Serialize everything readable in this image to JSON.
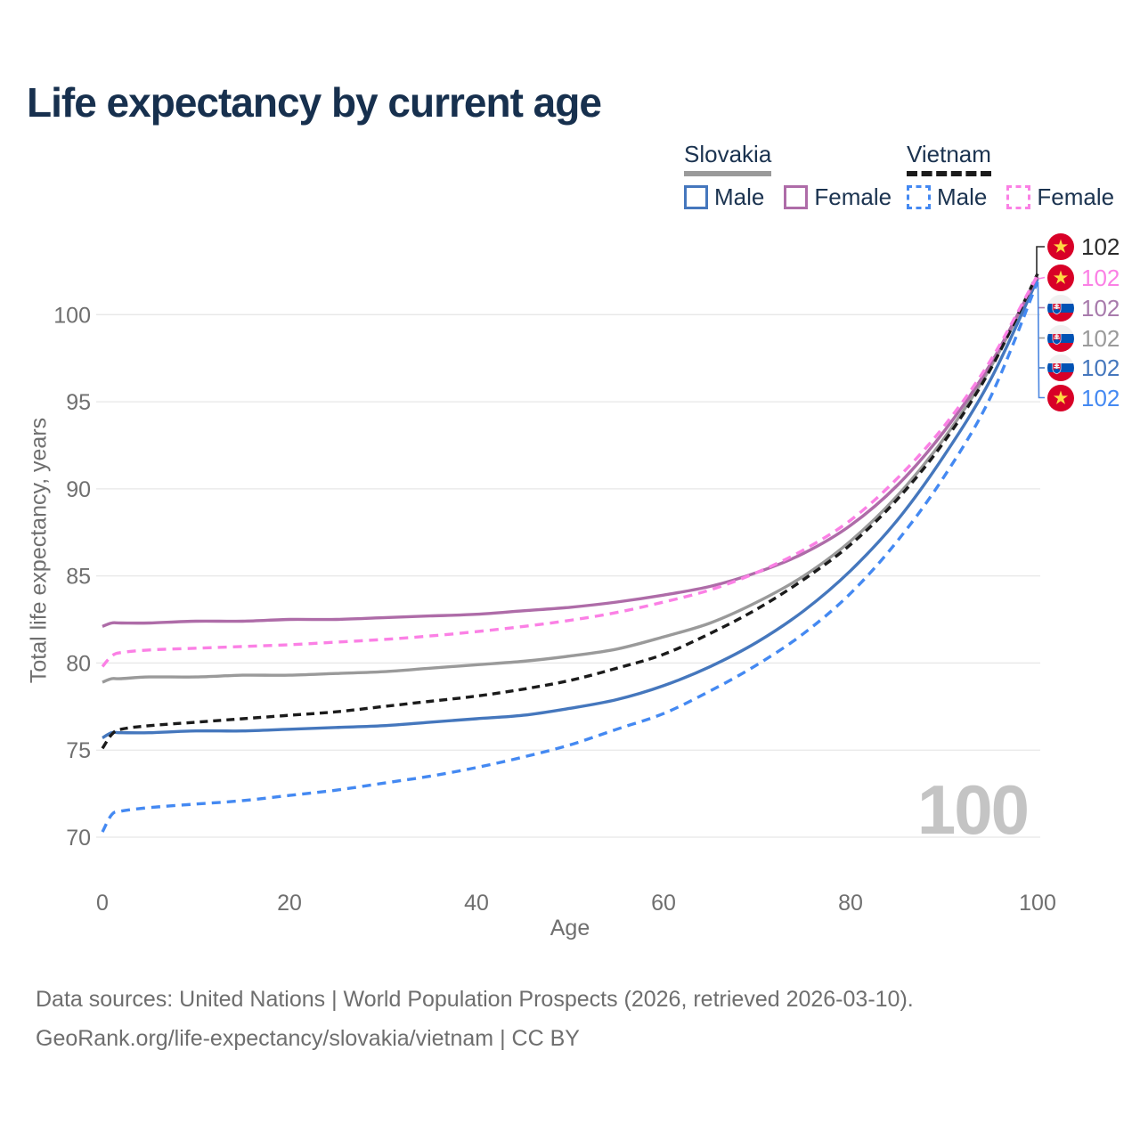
{
  "title": "Life expectancy by current age",
  "legend": {
    "groups": [
      {
        "label": "Slovakia",
        "line_style": "solid",
        "underline_color": "#9a9a9a",
        "items": [
          {
            "label": "Male",
            "color": "#4577bd",
            "dash": false
          },
          {
            "label": "Female",
            "color": "#ae6ca8",
            "dash": false
          }
        ]
      },
      {
        "label": "Vietnam",
        "line_style": "dashed",
        "underline_color": "#1b1b1b",
        "items": [
          {
            "label": "Male",
            "color": "#4489f2",
            "dash": true
          },
          {
            "label": "Female",
            "color": "#fb80e5",
            "dash": true
          }
        ]
      }
    ]
  },
  "chart_data": {
    "type": "line",
    "title": "Life expectancy by current age",
    "xlabel": "Age",
    "ylabel": "Total life expectancy, years",
    "xlim": [
      0,
      100
    ],
    "ylim": [
      70,
      102.5
    ],
    "xticks": [
      0,
      20,
      40,
      60,
      80,
      100
    ],
    "yticks": [
      70,
      75,
      80,
      85,
      90,
      95,
      100
    ],
    "grid": "horizontal-only",
    "legend_position": "top-right",
    "anchor_ages": [
      0,
      1,
      2,
      5,
      10,
      15,
      20,
      25,
      30,
      35,
      40,
      45,
      50,
      55,
      60,
      65,
      70,
      75,
      80,
      85,
      90,
      95,
      100
    ],
    "series": [
      {
        "id": "slovakia-total",
        "name": "Slovakia",
        "country": "Slovakia",
        "sex": "both",
        "color": "#9a9a9a",
        "dash": null,
        "values": [
          78.9,
          79.1,
          79.1,
          79.2,
          79.2,
          79.3,
          79.3,
          79.4,
          79.5,
          79.7,
          79.9,
          80.1,
          80.4,
          80.8,
          81.5,
          82.3,
          83.5,
          85.0,
          87.0,
          89.6,
          92.9,
          97.0,
          102.15
        ]
      },
      {
        "id": "slovakia-male",
        "name": "Slovakia Male",
        "country": "Slovakia",
        "sex": "male",
        "color": "#4577bd",
        "dash": null,
        "values": [
          75.7,
          76.0,
          76.0,
          76.0,
          76.1,
          76.1,
          76.2,
          76.3,
          76.4,
          76.6,
          76.8,
          77.0,
          77.4,
          77.9,
          78.7,
          79.8,
          81.2,
          83.0,
          85.3,
          88.2,
          91.9,
          96.3,
          102.05
        ]
      },
      {
        "id": "slovakia-female",
        "name": "Slovakia Female",
        "country": "Slovakia",
        "sex": "female",
        "color": "#ae6ca8",
        "dash": null,
        "values": [
          82.1,
          82.3,
          82.3,
          82.3,
          82.4,
          82.4,
          82.5,
          82.5,
          82.6,
          82.7,
          82.8,
          83.0,
          83.2,
          83.5,
          83.9,
          84.4,
          85.2,
          86.3,
          87.9,
          90.2,
          93.3,
          97.2,
          102.2
        ]
      },
      {
        "id": "vietnam-total",
        "name": "Vietnam",
        "country": "Vietnam",
        "sex": "both",
        "color": "#1b1b1b",
        "dash": [
          9,
          6
        ],
        "values": [
          75.1,
          75.9,
          76.2,
          76.4,
          76.6,
          76.8,
          77.0,
          77.2,
          77.5,
          77.8,
          78.1,
          78.5,
          79.0,
          79.7,
          80.5,
          81.7,
          83.1,
          84.8,
          86.8,
          89.4,
          92.7,
          96.9,
          102.35
        ]
      },
      {
        "id": "vietnam-male",
        "name": "Vietnam Male",
        "country": "Vietnam",
        "sex": "male",
        "color": "#4489f2",
        "dash": [
          10,
          7
        ],
        "values": [
          70.3,
          71.3,
          71.5,
          71.7,
          71.9,
          72.1,
          72.4,
          72.7,
          73.1,
          73.5,
          74.0,
          74.6,
          75.3,
          76.2,
          77.1,
          78.4,
          79.9,
          81.7,
          84.0,
          87.0,
          90.7,
          95.3,
          101.9
        ]
      },
      {
        "id": "vietnam-female",
        "name": "Vietnam Female",
        "country": "Vietnam",
        "sex": "female",
        "color": "#fb80e5",
        "dash": [
          10,
          7
        ],
        "values": [
          79.8,
          80.4,
          80.6,
          80.75,
          80.85,
          80.95,
          81.05,
          81.2,
          81.35,
          81.55,
          81.8,
          82.1,
          82.45,
          82.9,
          83.5,
          84.2,
          85.2,
          86.5,
          88.2,
          90.6,
          93.6,
          97.4,
          102.28
        ]
      }
    ],
    "end_labels": [
      {
        "flag": "vn",
        "country": "Vietnam",
        "series": "vietnam-total",
        "value": "102",
        "color": "#2b2b2b"
      },
      {
        "flag": "vn",
        "country": "Vietnam",
        "series": "vietnam-female",
        "value": "102",
        "color": "#fb80e5"
      },
      {
        "flag": "sk",
        "country": "Slovakia",
        "series": "slovakia-female",
        "value": "102",
        "color": "#a87bac"
      },
      {
        "flag": "sk",
        "country": "Slovakia",
        "series": "slovakia-total",
        "value": "102",
        "color": "#9a9a9a"
      },
      {
        "flag": "sk",
        "country": "Slovakia",
        "series": "slovakia-male",
        "value": "102",
        "color": "#4577bd"
      },
      {
        "flag": "vn",
        "country": "Vietnam",
        "series": "vietnam-male",
        "value": "102",
        "color": "#4489f2"
      }
    ],
    "flag_colors": {
      "vietnam_red": "#d80027",
      "vietnam_star": "#ffda44",
      "slovakia_white": "#f0f0f0",
      "slovakia_blue": "#0052b4",
      "slovakia_red": "#d80027"
    }
  },
  "watermark": "100",
  "footer": {
    "line1": "Data sources: United Nations | World Population Prospects (2026, retrieved 2026-03-10).",
    "line2": "GeoRank.org/life-expectancy/slovakia/vietnam | CC BY"
  }
}
